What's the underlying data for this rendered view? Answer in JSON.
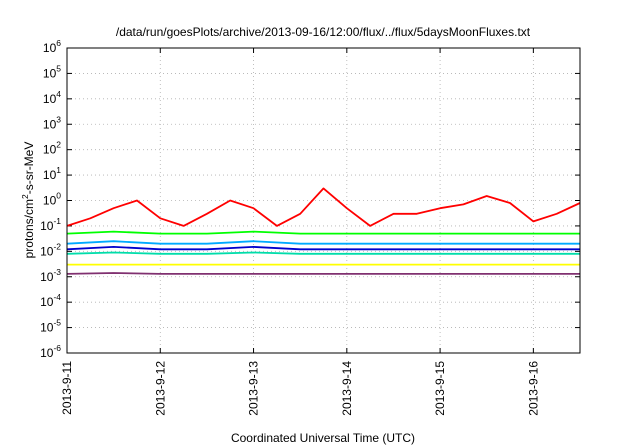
{
  "chart_data": {
    "type": "line",
    "title": "/data/run/goesPlots/archive/2013-09-16/12:00/flux/../flux/5daysMoonFluxes.txt",
    "xlabel": "Coordinated Universal Time (UTC)",
    "ylabel": "protons/cm²-s-sr-MeV",
    "ylabel_parts": {
      "pre": "protons/cm",
      "sup": "2",
      "post": "-s-sr-MeV"
    },
    "yscale": "log",
    "ylim": [
      1e-06,
      1000000.0
    ],
    "xlim": [
      "2013-09-11",
      "2013-09-16T12:00"
    ],
    "grid": true,
    "x_tick_labels": [
      "2013-9-11",
      "2013-9-12",
      "2013-9-13",
      "2013-9-14",
      "2013-9-15",
      "2013-9-16"
    ],
    "y_ticks": [
      {
        "base": "10",
        "exp": "-6"
      },
      {
        "base": "10",
        "exp": "-5"
      },
      {
        "base": "10",
        "exp": "-4"
      },
      {
        "base": "10",
        "exp": "-3"
      },
      {
        "base": "10",
        "exp": "-2"
      },
      {
        "base": "10",
        "exp": "-1"
      },
      {
        "base": "10",
        "exp": "0"
      },
      {
        "base": "10",
        "exp": "1"
      },
      {
        "base": "10",
        "exp": "2"
      },
      {
        "base": "10",
        "exp": "3"
      },
      {
        "base": "10",
        "exp": "4"
      },
      {
        "base": "10",
        "exp": "5"
      },
      {
        "base": "10",
        "exp": "6"
      }
    ],
    "series": [
      {
        "color": "#ff0000",
        "time_days": [
          0.0,
          0.25,
          0.5,
          0.75,
          1.0,
          1.25,
          1.5,
          1.75,
          2.0,
          2.25,
          2.5,
          2.75,
          3.0,
          3.25,
          3.5,
          3.75,
          4.0,
          4.25,
          4.5,
          4.75,
          5.0,
          5.25,
          5.5
        ],
        "values": [
          0.1,
          0.2,
          0.5,
          1.0,
          0.2,
          0.1,
          0.3,
          1.0,
          0.5,
          0.1,
          0.3,
          3.0,
          0.5,
          0.1,
          0.3,
          0.3,
          0.5,
          0.7,
          1.5,
          0.8,
          0.15,
          0.3,
          0.8
        ]
      },
      {
        "color": "#00ff00",
        "time_days": [
          0.0,
          0.5,
          1.0,
          1.5,
          2.0,
          2.5,
          3.0,
          3.5,
          4.0,
          4.5,
          5.0,
          5.5
        ],
        "values": [
          0.05,
          0.06,
          0.05,
          0.05,
          0.06,
          0.05,
          0.05,
          0.05,
          0.05,
          0.05,
          0.05,
          0.05
        ]
      },
      {
        "color": "#00aaff",
        "time_days": [
          0.0,
          0.5,
          1.0,
          1.5,
          2.0,
          2.5,
          3.0,
          3.5,
          4.0,
          4.5,
          5.0,
          5.5
        ],
        "values": [
          0.02,
          0.025,
          0.02,
          0.02,
          0.025,
          0.02,
          0.02,
          0.02,
          0.02,
          0.02,
          0.02,
          0.02
        ]
      },
      {
        "color": "#0000cc",
        "time_days": [
          0.0,
          0.5,
          1.0,
          1.5,
          2.0,
          2.5,
          3.0,
          3.5,
          4.0,
          4.5,
          5.0,
          5.5
        ],
        "values": [
          0.012,
          0.015,
          0.012,
          0.012,
          0.015,
          0.012,
          0.012,
          0.012,
          0.012,
          0.012,
          0.012,
          0.012
        ]
      },
      {
        "color": "#00ddaa",
        "time_days": [
          0.0,
          0.5,
          1.0,
          1.5,
          2.0,
          2.5,
          3.0,
          3.5,
          4.0,
          4.5,
          5.0,
          5.5
        ],
        "values": [
          0.008,
          0.009,
          0.008,
          0.008,
          0.009,
          0.008,
          0.008,
          0.008,
          0.008,
          0.008,
          0.008,
          0.008
        ]
      },
      {
        "color": "#ffff00",
        "time_days": [
          0.0,
          0.5,
          1.0,
          1.5,
          2.0,
          2.5,
          3.0,
          3.5,
          4.0,
          4.5,
          5.0,
          5.5
        ],
        "values": [
          0.003,
          0.003,
          0.003,
          0.003,
          0.003,
          0.003,
          0.003,
          0.003,
          0.003,
          0.003,
          0.003,
          0.003
        ]
      },
      {
        "color": "#803070",
        "time_days": [
          0.0,
          0.5,
          1.0,
          1.5,
          2.0,
          2.5,
          3.0,
          3.5,
          4.0,
          4.5,
          5.0,
          5.5
        ],
        "values": [
          0.0013,
          0.0014,
          0.0013,
          0.0013,
          0.0013,
          0.0013,
          0.0013,
          0.0013,
          0.0013,
          0.0013,
          0.0013,
          0.0013
        ]
      }
    ]
  }
}
